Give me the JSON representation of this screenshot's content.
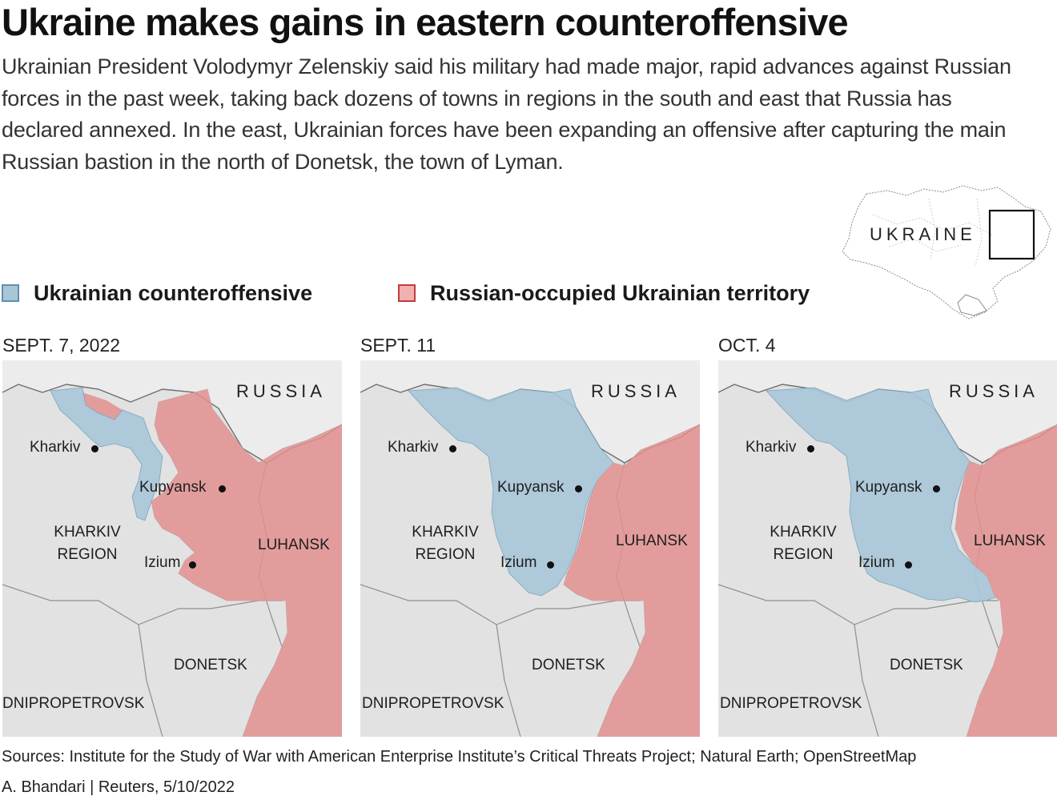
{
  "title": "Ukraine makes gains in eastern counteroffensive",
  "lede": "Ukrainian President Volodymyr Zelenskiy said his military had made major, rapid advances against Russian forces in the past week, taking back dozens of towns in regions in the south and east that Russia has declared annexed. In the east, Ukrainian forces have been expanding an offensive after capturing the main Russian bastion in the north of Donetsk, the town of Lyman.",
  "inset_label": "UKRAINE",
  "colors": {
    "ukrainian_fill": "#a9c6d8",
    "ukrainian_stroke": "#5d8fb0",
    "russian_fill": "#e38f8f",
    "russian_stroke": "#c43a3a",
    "base_land": "#e2e2e2"
  },
  "legend": {
    "ukrainian": "Ukrainian counteroffensive",
    "russian": "Russian-occupied Ukrainian territory"
  },
  "map_labels": {
    "russia": "RUSSIA",
    "kharkiv": "Kharkiv",
    "kupyansk": "Kupyansk",
    "izium": "Izium",
    "kharkiv_region_1": "KHARKIV",
    "kharkiv_region_2": "REGION",
    "luhansk": "LUHANSK",
    "donetsk": "DONETSK",
    "dnipropetrovsk": "DNIPROPETROVSK"
  },
  "panels": [
    {
      "date": "SEPT. 7, 2022"
    },
    {
      "date": "SEPT. 11"
    },
    {
      "date": "OCT. 4"
    }
  ],
  "sources": "Sources: Institute for the Study of War with American Enterprise Institute’s Critical Threats Project; Natural Earth; OpenStreetMap",
  "credit": "A. Bhandari  |  Reuters, 5/10/2022"
}
